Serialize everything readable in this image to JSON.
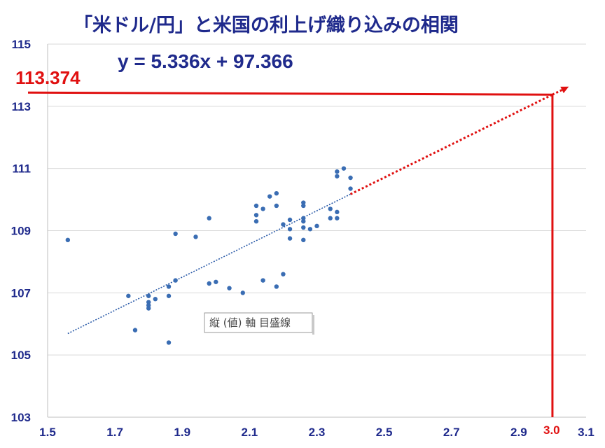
{
  "title": "「米ドル/円」と米国の利上げ織り込みの相関",
  "equation": "y = 5.336x + 97.366",
  "projection_label": "113.374",
  "x_marker_label": "3.0",
  "axis_tag": "縦 (値) 軸 目盛線",
  "colors": {
    "title": "#1f2a8c",
    "points": "#3a6db3",
    "projection": "#e01010",
    "trend": "#2a5aa8"
  },
  "chart_data": {
    "type": "scatter",
    "title": "「米ドル/円」と米国の利上げ織り込みの相関",
    "xlabel": "",
    "ylabel": "",
    "xlim": [
      1.5,
      3.1
    ],
    "ylim": [
      103,
      115
    ],
    "x_ticks": [
      "1.5",
      "1.7",
      "1.9",
      "2.1",
      "2.3",
      "2.5",
      "2.7",
      "2.9",
      "3.1"
    ],
    "y_ticks": [
      "103",
      "105",
      "107",
      "109",
      "111",
      "113",
      "115"
    ],
    "grid": {
      "horizontal": true,
      "vertical": false
    },
    "trendline": {
      "slope": 5.336,
      "intercept": 97.366,
      "x_start": 1.56,
      "x_end": 2.4
    },
    "projection": {
      "x": 3.0,
      "y": 113.374
    },
    "points": [
      [
        1.56,
        108.7
      ],
      [
        1.74,
        106.9
      ],
      [
        1.76,
        105.8
      ],
      [
        1.8,
        106.9
      ],
      [
        1.8,
        106.7
      ],
      [
        1.8,
        106.6
      ],
      [
        1.8,
        106.5
      ],
      [
        1.82,
        106.8
      ],
      [
        1.86,
        107.2
      ],
      [
        1.86,
        106.9
      ],
      [
        1.86,
        105.4
      ],
      [
        1.88,
        108.9
      ],
      [
        1.88,
        107.4
      ],
      [
        1.94,
        108.8
      ],
      [
        1.98,
        109.4
      ],
      [
        1.98,
        107.3
      ],
      [
        2.0,
        107.35
      ],
      [
        2.04,
        107.15
      ],
      [
        2.08,
        107.0
      ],
      [
        2.12,
        109.8
      ],
      [
        2.12,
        109.5
      ],
      [
        2.12,
        109.3
      ],
      [
        2.14,
        109.7
      ],
      [
        2.14,
        107.4
      ],
      [
        2.16,
        110.1
      ],
      [
        2.18,
        110.2
      ],
      [
        2.18,
        109.8
      ],
      [
        2.18,
        107.2
      ],
      [
        2.2,
        109.2
      ],
      [
        2.2,
        107.6
      ],
      [
        2.22,
        109.35
      ],
      [
        2.22,
        109.05
      ],
      [
        2.22,
        108.75
      ],
      [
        2.26,
        109.9
      ],
      [
        2.26,
        109.8
      ],
      [
        2.26,
        109.4
      ],
      [
        2.26,
        109.3
      ],
      [
        2.26,
        109.1
      ],
      [
        2.26,
        108.7
      ],
      [
        2.28,
        109.05
      ],
      [
        2.3,
        109.15
      ],
      [
        2.34,
        109.7
      ],
      [
        2.34,
        109.4
      ],
      [
        2.36,
        110.9
      ],
      [
        2.36,
        110.75
      ],
      [
        2.36,
        109.6
      ],
      [
        2.36,
        109.4
      ],
      [
        2.38,
        111.0
      ],
      [
        2.4,
        110.7
      ],
      [
        2.4,
        110.35
      ]
    ]
  }
}
